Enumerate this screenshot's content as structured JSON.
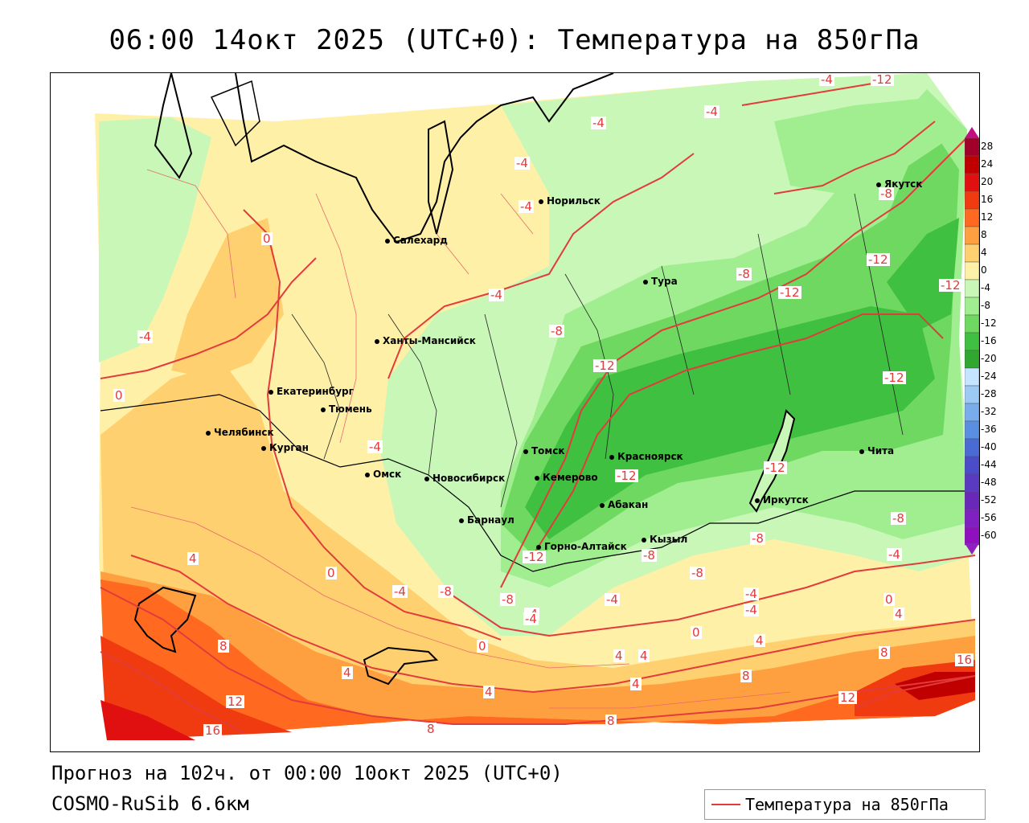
{
  "title": "06:00 14окт 2025 (UTC+0): Температура на 850гПа",
  "footer": {
    "forecast": "Прогноз на 102ч. от 00:00 10окт 2025 (UTC+0)",
    "model": "COSMO-RuSib 6.6км"
  },
  "legend": {
    "label": "Температура на 850гПа",
    "color": "#e23b3b"
  },
  "colorbar": {
    "ticks": [
      "28",
      "24",
      "20",
      "16",
      "12",
      "8",
      "4",
      "0",
      "-4",
      "-8",
      "-12",
      "-16",
      "-20",
      "-24",
      "-28",
      "-32",
      "-36",
      "-40",
      "-44",
      "-48",
      "-52",
      "-56",
      "-60"
    ],
    "colors": [
      "#a0002a",
      "#c00000",
      "#e01010",
      "#f03a10",
      "#ff6a20",
      "#ffa040",
      "#ffd070",
      "#fff0a8",
      "#c8f7b8",
      "#a0ee90",
      "#6ed860",
      "#40c040",
      "#30a830",
      "#c4e4ff",
      "#9ccaf4",
      "#78acea",
      "#5a8ee0",
      "#4a6ad4",
      "#4a4cc8",
      "#5a3ac0",
      "#6a28b8",
      "#8020c0",
      "#9010c0"
    ],
    "top_arrow_color": "#c01080",
    "bottom_arrow_color": "#9020c0"
  },
  "cities": [
    {
      "name": "Якутск"
    },
    {
      "name": "Норильск"
    },
    {
      "name": "Салехард"
    },
    {
      "name": "Тура"
    },
    {
      "name": "Ханты-Мансийск"
    },
    {
      "name": "Екатеринбург"
    },
    {
      "name": "Тюмень"
    },
    {
      "name": "Челябинск"
    },
    {
      "name": "Курган"
    },
    {
      "name": "Омск"
    },
    {
      "name": "Новосибирск"
    },
    {
      "name": "Томск"
    },
    {
      "name": "Красноярск"
    },
    {
      "name": "Кемерово"
    },
    {
      "name": "Барнаул"
    },
    {
      "name": "Абакан"
    },
    {
      "name": "Горно-Алтайск"
    },
    {
      "name": "Кызыл"
    },
    {
      "name": "Иркутск"
    },
    {
      "name": "Чита"
    }
  ],
  "contour_labels": [
    "-8",
    "-12",
    "-4",
    "-4",
    "-4",
    "-4",
    "-4",
    "-8",
    "-12",
    "-12",
    "-8",
    "-12",
    "-12",
    "-4",
    "-8",
    "-12",
    "-12",
    "-12",
    "-8",
    "-4",
    "0",
    "-4",
    "0",
    "-4",
    "-4",
    "4",
    "0",
    "-4",
    "-8",
    "-8",
    "-4",
    "-12",
    "-8",
    "-4",
    "-8",
    "-4",
    "-4",
    "0",
    "4",
    "0",
    "4",
    "8",
    "4",
    "16",
    "8",
    "4",
    "4",
    "0",
    "4",
    "8",
    "12",
    "12",
    "16",
    "8",
    "8",
    "4"
  ]
}
